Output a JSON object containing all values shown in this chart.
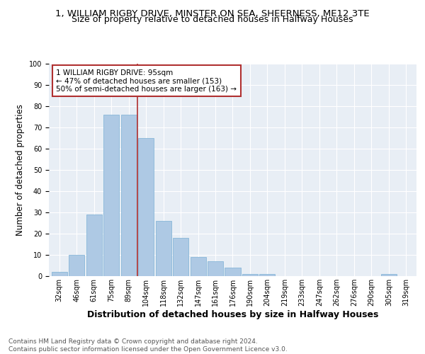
{
  "title1": "1, WILLIAM RIGBY DRIVE, MINSTER ON SEA, SHEERNESS, ME12 3TE",
  "title2": "Size of property relative to detached houses in Halfway Houses",
  "xlabel": "Distribution of detached houses by size in Halfway Houses",
  "ylabel": "Number of detached properties",
  "categories": [
    "32sqm",
    "46sqm",
    "61sqm",
    "75sqm",
    "89sqm",
    "104sqm",
    "118sqm",
    "132sqm",
    "147sqm",
    "161sqm",
    "176sqm",
    "190sqm",
    "204sqm",
    "219sqm",
    "233sqm",
    "247sqm",
    "262sqm",
    "276sqm",
    "290sqm",
    "305sqm",
    "319sqm"
  ],
  "values": [
    2,
    10,
    29,
    76,
    76,
    65,
    26,
    18,
    9,
    7,
    4,
    1,
    1,
    0,
    0,
    0,
    0,
    0,
    0,
    1,
    0
  ],
  "bar_color": "#aec9e4",
  "bar_edge_color": "#7aafd4",
  "vline_x_idx": 4.5,
  "vline_color": "#b03030",
  "annotation_text": "1 WILLIAM RIGBY DRIVE: 95sqm\n← 47% of detached houses are smaller (153)\n50% of semi-detached houses are larger (163) →",
  "annotation_box_color": "white",
  "annotation_box_edge_color": "#b03030",
  "ylim": [
    0,
    100
  ],
  "background_color": "#e8eef5",
  "footer_text": "Contains HM Land Registry data © Crown copyright and database right 2024.\nContains public sector information licensed under the Open Government Licence v3.0.",
  "grid_color": "white",
  "title_fontsize": 9.5,
  "subtitle_fontsize": 9,
  "tick_fontsize": 7,
  "ylabel_fontsize": 8.5,
  "xlabel_fontsize": 9,
  "footer_fontsize": 6.5
}
